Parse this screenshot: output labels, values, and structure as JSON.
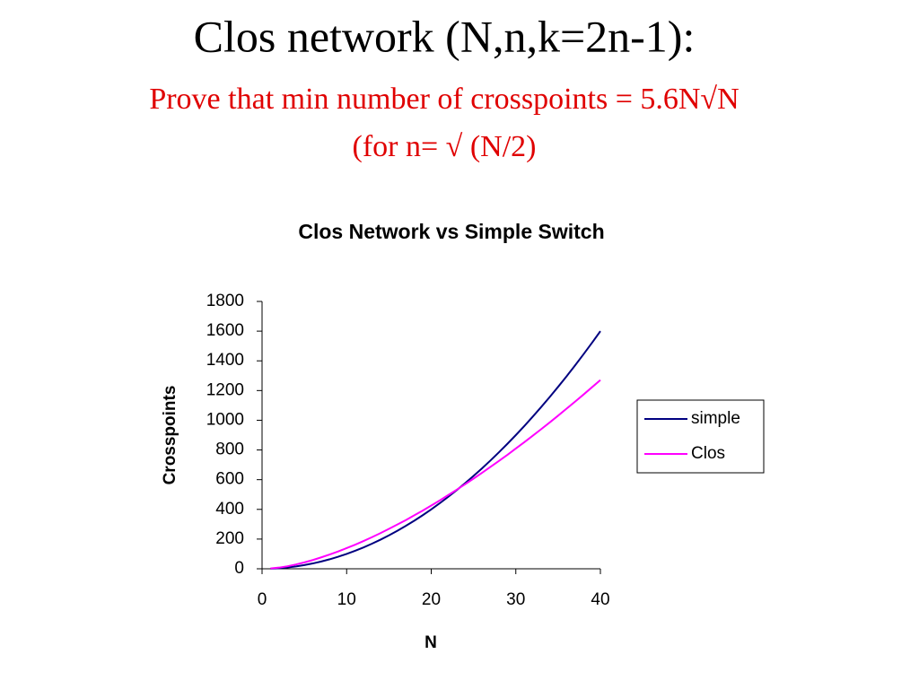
{
  "slide": {
    "title": "Clos network (N,n,k=2n-1):",
    "subtitle": "Prove that min number of crosspoints = 5.6N√N",
    "note": "(for n= √ (N/2)"
  },
  "chart_data": {
    "type": "line",
    "title": "Clos Network vs Simple Switch",
    "x_label": "N",
    "y_label": "Crosspoints",
    "x": [
      1,
      2,
      3,
      4,
      5,
      6,
      7,
      8,
      9,
      10,
      11,
      12,
      13,
      14,
      15,
      16,
      17,
      18,
      19,
      20,
      21,
      22,
      23,
      24,
      25,
      26,
      27,
      28,
      29,
      30,
      31,
      32,
      33,
      34,
      35,
      36,
      37,
      38,
      39,
      40
    ],
    "series": [
      {
        "name": "simple",
        "color": "#000080",
        "values": [
          1,
          4,
          9,
          16,
          25,
          36,
          49,
          64,
          81,
          100,
          121,
          144,
          169,
          196,
          225,
          256,
          289,
          324,
          361,
          400,
          441,
          484,
          529,
          576,
          625,
          676,
          729,
          784,
          841,
          900,
          961,
          1024,
          1089,
          1156,
          1225,
          1296,
          1369,
          1444,
          1521,
          1600
        ]
      },
      {
        "name": "Clos",
        "color": "#ff00ff",
        "values": [
          2,
          8,
          17,
          29,
          43,
          59,
          77,
          96,
          117,
          139,
          162,
          187,
          213,
          240,
          269,
          298,
          328,
          360,
          392,
          426,
          460,
          496,
          532,
          569,
          607,
          646,
          686,
          726,
          767,
          810,
          852,
          896,
          940,
          985,
          1031,
          1078,
          1125,
          1173,
          1222,
          1271
        ]
      }
    ],
    "xlim": [
      0,
      40
    ],
    "xticks": [
      0,
      10,
      20,
      30,
      40
    ],
    "ylim": [
      0,
      1800
    ],
    "yticks": [
      0,
      200,
      400,
      600,
      800,
      1000,
      1200,
      1400,
      1600,
      1800
    ],
    "grid": false,
    "legend": "right"
  }
}
